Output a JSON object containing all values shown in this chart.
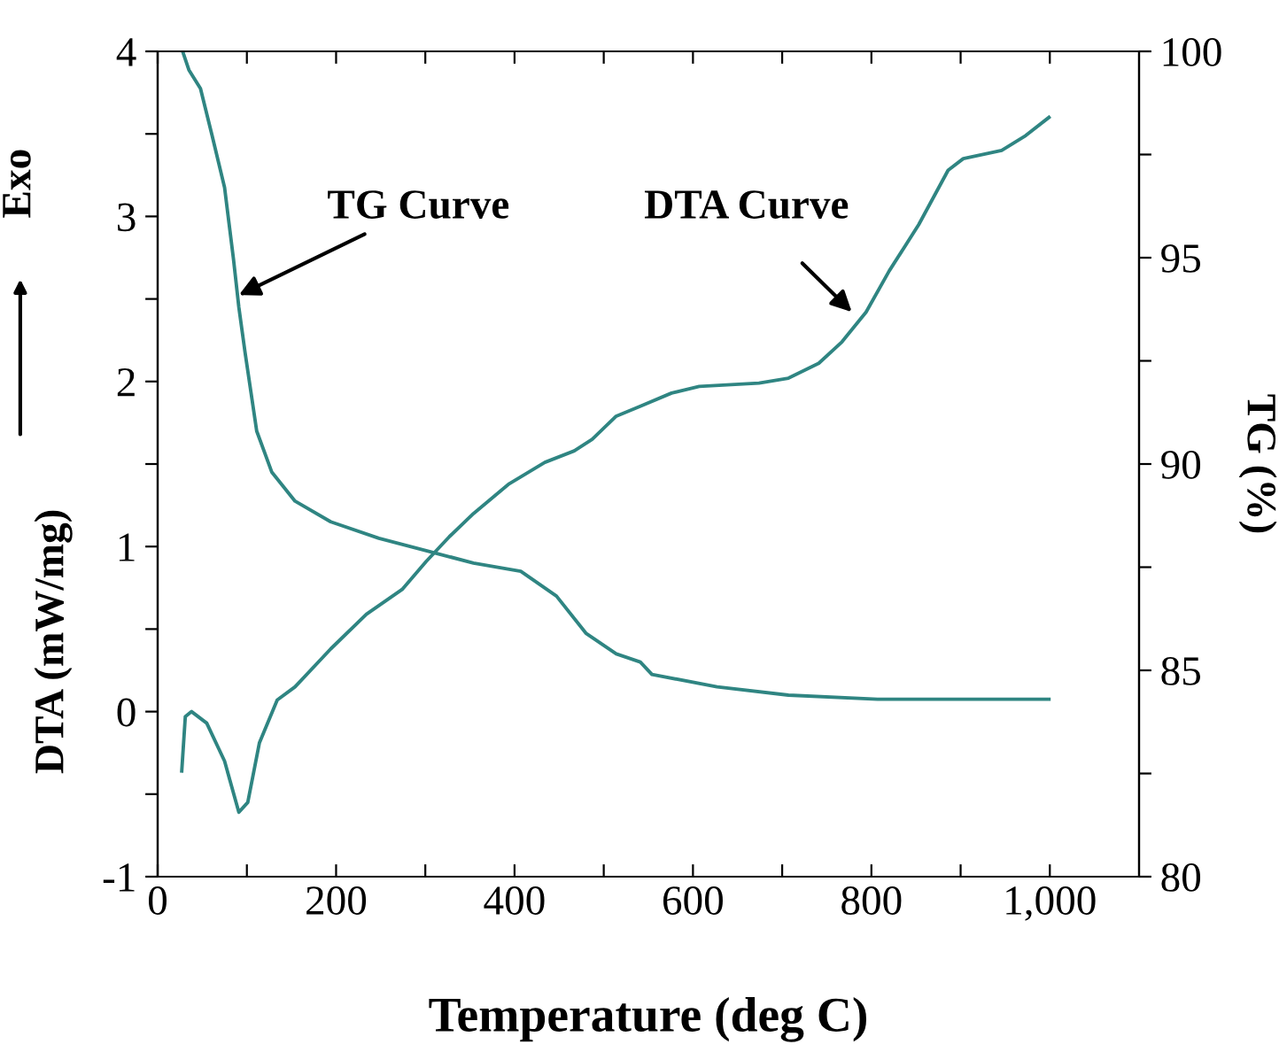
{
  "chart_data": {
    "type": "line",
    "xlabel": "Temperature (deg C)",
    "ylabel": "DTA (mW/mg)",
    "y2label": "TG (%)",
    "xlim": [
      0,
      1100
    ],
    "xticks": [
      0,
      {
        "value": 100,
        "label": null
      },
      200,
      {
        "value": 300,
        "label": null
      },
      400,
      {
        "value": 500,
        "label": null
      },
      600,
      {
        "value": 700,
        "label": null
      },
      800,
      {
        "value": 900,
        "label": null
      },
      {
        "value": 1000,
        "label": "1,000"
      }
    ],
    "ylim": [
      -1,
      4
    ],
    "yticks": [
      -1,
      {
        "value": -0.5,
        "label": null
      },
      0,
      {
        "value": 0.5,
        "label": null
      },
      1,
      {
        "value": 1.5,
        "label": null
      },
      2,
      {
        "value": 2.5,
        "label": null
      },
      3,
      {
        "value": 3.5,
        "label": null
      },
      4
    ],
    "y2lim": [
      80,
      100
    ],
    "y2ticks": [
      80,
      {
        "value": 82.5,
        "label": null
      },
      85,
      {
        "value": 87.5,
        "label": null
      },
      90,
      {
        "value": 92.5,
        "label": null
      },
      95,
      {
        "value": 97.5,
        "label": null
      },
      100
    ],
    "grid": false,
    "legend": false,
    "marker": "none",
    "line_style": "solid",
    "series": [
      {
        "color": "#2f8582",
        "x": [
          27,
          31,
          38,
          55,
          75,
          91,
          101,
          114,
          134,
          154,
          194,
          234,
          274,
          301,
          327,
          354,
          394,
          434,
          467,
          487,
          514,
          541,
          576,
          607,
          674,
          707,
          741,
          767,
          794,
          820,
          853,
          886,
          903,
          946,
          973,
          999
        ],
        "values": [
          -0.36,
          -0.03,
          0.0,
          -0.07,
          -0.3,
          -0.61,
          -0.55,
          -0.19,
          0.07,
          0.15,
          0.38,
          0.59,
          0.74,
          0.91,
          1.06,
          1.2,
          1.38,
          1.51,
          1.58,
          1.65,
          1.79,
          1.85,
          1.93,
          1.97,
          1.99,
          2.02,
          2.11,
          2.24,
          2.42,
          2.67,
          2.95,
          3.28,
          3.35,
          3.4,
          3.49,
          3.6
        ]
      },
      {
        "color": "#2f8582",
        "axis": "y2",
        "x": [
          28,
          35,
          48,
          61,
          75,
          85,
          91,
          98,
          111,
          128,
          154,
          194,
          248,
          301,
          354,
          407,
          447,
          480,
          514,
          541,
          554,
          627,
          707,
          807,
          999
        ],
        "values": [
          100,
          99.55,
          99.1,
          97.96,
          96.7,
          94.96,
          93.8,
          92.7,
          90.8,
          89.8,
          89.1,
          88.6,
          88.2,
          87.9,
          87.6,
          87.4,
          86.8,
          85.9,
          85.4,
          85.2,
          84.9,
          84.6,
          84.4,
          84.3,
          84.3
        ]
      }
    ],
    "annotations": [
      {
        "text": "TG Curve",
        "x": 86,
        "y": 2.51
      },
      {
        "text": "DTA Curve",
        "x": 782,
        "y": 2.4
      },
      "Exo"
    ]
  }
}
